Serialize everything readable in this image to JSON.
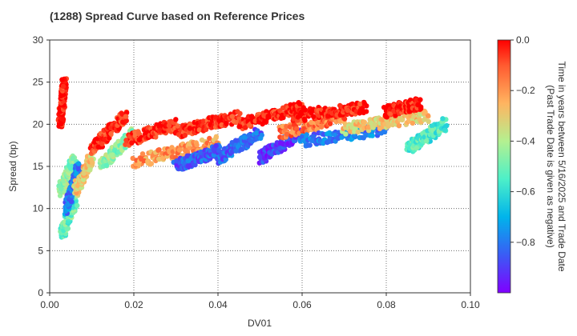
{
  "chart_data": {
    "type": "scatter",
    "title": "(1288)   Spread Curve based on Reference Prices",
    "xlabel": "DV01",
    "ylabel": "Spread (bp)",
    "xlim": [
      0,
      0.1
    ],
    "ylim": [
      0,
      30
    ],
    "x_ticks": [
      "0.00",
      "0.02",
      "0.04",
      "0.06",
      "0.08",
      "0.10"
    ],
    "y_ticks": [
      "0",
      "5",
      "10",
      "15",
      "20",
      "25",
      "30"
    ],
    "grid": true,
    "colorbar": {
      "label_line1": "Time in years between 5/16/2025 and Trade Date",
      "label_line2": "(Past Trade Date is given as negative)",
      "range": [
        -1.0,
        0.0
      ],
      "ticks": [
        "0.0",
        "−0.2",
        "−0.4",
        "−0.6",
        "−0.8"
      ],
      "tick_values": [
        0.0,
        -0.2,
        -0.4,
        -0.6,
        -0.8
      ],
      "colormap": "rainbow"
    },
    "series": [
      {
        "dv01_start": 0.0025,
        "dv01_end": 0.0035,
        "spread_start": 20,
        "spread_end": 25.2,
        "time": -0.02
      },
      {
        "dv01_start": 0.0025,
        "dv01_end": 0.006,
        "spread_start": 12,
        "spread_end": 16,
        "time": -0.45
      },
      {
        "dv01_start": 0.003,
        "dv01_end": 0.006,
        "spread_start": 7,
        "spread_end": 11,
        "time": -0.5
      },
      {
        "dv01_start": 0.004,
        "dv01_end": 0.007,
        "spread_start": 10,
        "spread_end": 15,
        "time": -0.8
      },
      {
        "dv01_start": 0.006,
        "dv01_end": 0.01,
        "spread_start": 12,
        "spread_end": 16,
        "time": -0.3
      },
      {
        "dv01_start": 0.01,
        "dv01_end": 0.018,
        "spread_start": 17,
        "spread_end": 21,
        "time": -0.05
      },
      {
        "dv01_start": 0.012,
        "dv01_end": 0.02,
        "spread_start": 15,
        "spread_end": 19,
        "time": -0.45
      },
      {
        "dv01_start": 0.018,
        "dv01_end": 0.03,
        "spread_start": 18,
        "spread_end": 20,
        "time": -0.05
      },
      {
        "dv01_start": 0.02,
        "dv01_end": 0.04,
        "spread_start": 15.5,
        "spread_end": 18,
        "time": -0.2
      },
      {
        "dv01_start": 0.03,
        "dv01_end": 0.04,
        "spread_start": 15,
        "spread_end": 17,
        "time": -0.85
      },
      {
        "dv01_start": 0.03,
        "dv01_end": 0.045,
        "spread_start": 19,
        "spread_end": 21,
        "time": -0.05
      },
      {
        "dv01_start": 0.04,
        "dv01_end": 0.05,
        "spread_start": 16,
        "spread_end": 19,
        "time": -0.85
      },
      {
        "dv01_start": 0.045,
        "dv01_end": 0.06,
        "spread_start": 20,
        "spread_end": 22,
        "time": -0.03
      },
      {
        "dv01_start": 0.05,
        "dv01_end": 0.06,
        "spread_start": 16,
        "spread_end": 19,
        "time": -0.9
      },
      {
        "dv01_start": 0.055,
        "dv01_end": 0.07,
        "spread_start": 19,
        "spread_end": 21,
        "time": -0.15
      },
      {
        "dv01_start": 0.058,
        "dv01_end": 0.075,
        "spread_start": 21,
        "spread_end": 22,
        "time": -0.02
      },
      {
        "dv01_start": 0.06,
        "dv01_end": 0.08,
        "spread_start": 18,
        "spread_end": 19.5,
        "time": -0.8
      },
      {
        "dv01_start": 0.07,
        "dv01_end": 0.09,
        "spread_start": 19.5,
        "spread_end": 21,
        "time": -0.3
      },
      {
        "dv01_start": 0.08,
        "dv01_end": 0.088,
        "spread_start": 21.5,
        "spread_end": 22.5,
        "time": -0.02
      },
      {
        "dv01_start": 0.085,
        "dv01_end": 0.094,
        "spread_start": 17,
        "spread_end": 20,
        "time": -0.55
      }
    ]
  }
}
